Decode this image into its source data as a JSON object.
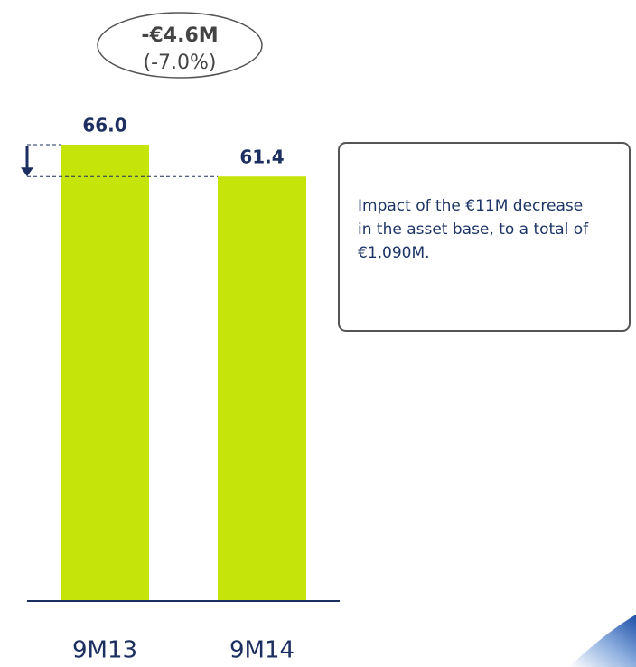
{
  "chart_data": {
    "type": "bar",
    "categories": [
      "9M13",
      "9M14"
    ],
    "values": [
      66.0,
      61.4
    ],
    "value_labels": [
      "66.0",
      "61.4"
    ],
    "color": "#c5e40a",
    "change_label": "-€4.6M",
    "change_percent_label": "(-7.0%)",
    "note": "Impact of the €11M decrease in the asset base, to a total of €1,090M."
  }
}
